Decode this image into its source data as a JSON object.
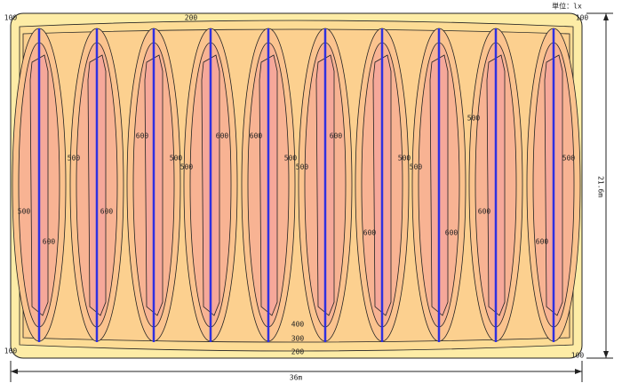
{
  "unit": "単位：lx",
  "dimensions": {
    "width": "36m",
    "height": "21.6m"
  },
  "contour_labels": [
    "100",
    "200",
    "100",
    "100",
    "100",
    "400",
    "300",
    "200",
    "500",
    "500",
    "500",
    "500",
    "500",
    "500",
    "500",
    "500",
    "500",
    "500",
    "600",
    "600",
    "600",
    "600",
    "600",
    "600",
    "600",
    "600",
    "600",
    "600"
  ]
}
